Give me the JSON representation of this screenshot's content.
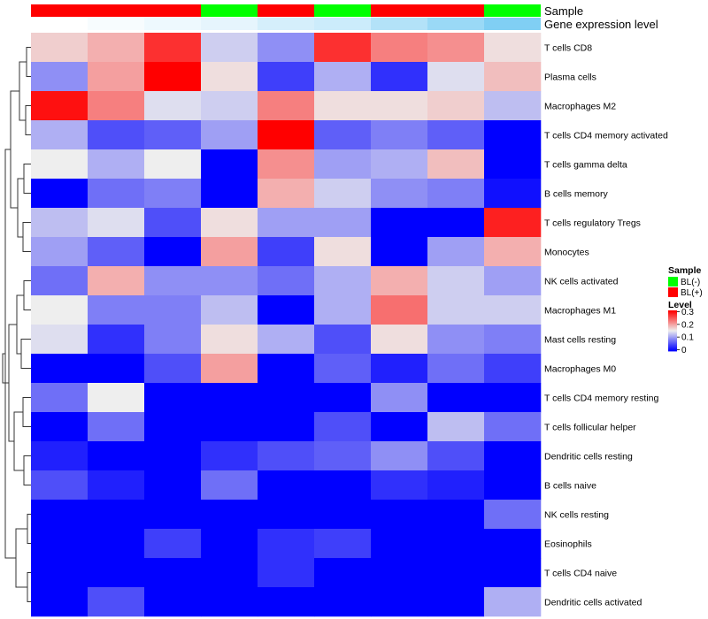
{
  "chart_data": {
    "type": "heatmap",
    "annotation_labels": [
      "Sample",
      "Gene expression level"
    ],
    "sample_groups": [
      "BL(+)",
      "BL(+)",
      "BL(+)",
      "BL(-)",
      "BL(+)",
      "BL(-)",
      "BL(+)",
      "BL(+)",
      "BL(-)"
    ],
    "gene_expression_level": [
      0.0,
      0.05,
      0.1,
      0.15,
      0.25,
      0.3,
      0.45,
      0.6,
      0.75
    ],
    "rows": [
      "T cells CD8",
      "Plasma cells",
      "Macrophages M2",
      "T cells CD4 memory activated",
      "T cells gamma delta",
      "B cells memory",
      "T cells regulatory  Tregs",
      "Monocytes",
      "NK cells activated",
      "Macrophages M1",
      "Mast cells resting",
      "Macrophages M0",
      "T cells CD4 memory resting",
      "T cells follicular helper",
      "Dendritic cells resting",
      "B cells naive",
      "NK cells resting",
      "Eosinophils",
      "T cells CD4 naive",
      "Dendritic cells activated"
    ],
    "values": [
      [
        0.17,
        0.19,
        0.27,
        0.13,
        0.09,
        0.27,
        0.22,
        0.21,
        0.16
      ],
      [
        0.09,
        0.2,
        0.3,
        0.16,
        0.04,
        0.11,
        0.03,
        0.14,
        0.18
      ],
      [
        0.29,
        0.22,
        0.14,
        0.13,
        0.22,
        0.16,
        0.16,
        0.17,
        0.12
      ],
      [
        0.11,
        0.05,
        0.06,
        0.1,
        0.3,
        0.06,
        0.08,
        0.06,
        0.0
      ],
      [
        0.15,
        0.11,
        0.15,
        0.0,
        0.21,
        0.1,
        0.11,
        0.18,
        0.0
      ],
      [
        0.0,
        0.07,
        0.08,
        0.0,
        0.19,
        0.13,
        0.09,
        0.08,
        0.01
      ],
      [
        0.12,
        0.14,
        0.05,
        0.16,
        0.1,
        0.1,
        0.0,
        0.0,
        0.28
      ],
      [
        0.1,
        0.06,
        0.0,
        0.2,
        0.04,
        0.16,
        0.0,
        0.1,
        0.19
      ],
      [
        0.07,
        0.19,
        0.09,
        0.09,
        0.07,
        0.11,
        0.19,
        0.13,
        0.1
      ],
      [
        0.15,
        0.08,
        0.08,
        0.12,
        0.0,
        0.11,
        0.23,
        0.13,
        0.13
      ],
      [
        0.14,
        0.03,
        0.08,
        0.16,
        0.11,
        0.05,
        0.16,
        0.09,
        0.08
      ],
      [
        0.0,
        0.0,
        0.05,
        0.2,
        0.0,
        0.06,
        0.02,
        0.07,
        0.04
      ],
      [
        0.07,
        0.15,
        0.0,
        0.0,
        0.0,
        0.0,
        0.09,
        0.0,
        0.0
      ],
      [
        0.0,
        0.07,
        0.0,
        0.0,
        0.0,
        0.05,
        0.0,
        0.12,
        0.07
      ],
      [
        0.02,
        0.0,
        0.0,
        0.03,
        0.05,
        0.06,
        0.09,
        0.05,
        0.0
      ],
      [
        0.05,
        0.02,
        0.0,
        0.07,
        0.0,
        0.0,
        0.03,
        0.02,
        0.0
      ],
      [
        0.0,
        0.0,
        0.0,
        0.0,
        0.0,
        0.0,
        0.0,
        0.0,
        0.07
      ],
      [
        0.0,
        0.0,
        0.04,
        0.0,
        0.03,
        0.04,
        0.0,
        0.0,
        0.0
      ],
      [
        0.0,
        0.0,
        0.0,
        0.0,
        0.03,
        0.0,
        0.0,
        0.0,
        0.0
      ],
      [
        0.0,
        0.05,
        0.0,
        0.0,
        0.0,
        0.0,
        0.0,
        0.0,
        0.11
      ]
    ],
    "color_scale": {
      "min": 0,
      "max": 0.3,
      "colors": [
        "#0000ff",
        "#eeeeee",
        "#ff0000"
      ],
      "ticks": [
        "0",
        "0.1",
        "0.2",
        "0.3"
      ]
    },
    "row_dendrogram": true,
    "legend": {
      "position": "right",
      "sample_title": "Sample",
      "sample_entries": [
        {
          "label": "BL(-)",
          "color": "#00ff00"
        },
        {
          "label": "BL(+)",
          "color": "#ff0000"
        }
      ],
      "level_title": "Level"
    },
    "annotation_colors": {
      "BL(+)": "#ff0000",
      "BL(-)": "#00ff00",
      "expr_low": "#ffffff",
      "expr_high": "#56bff0"
    }
  }
}
